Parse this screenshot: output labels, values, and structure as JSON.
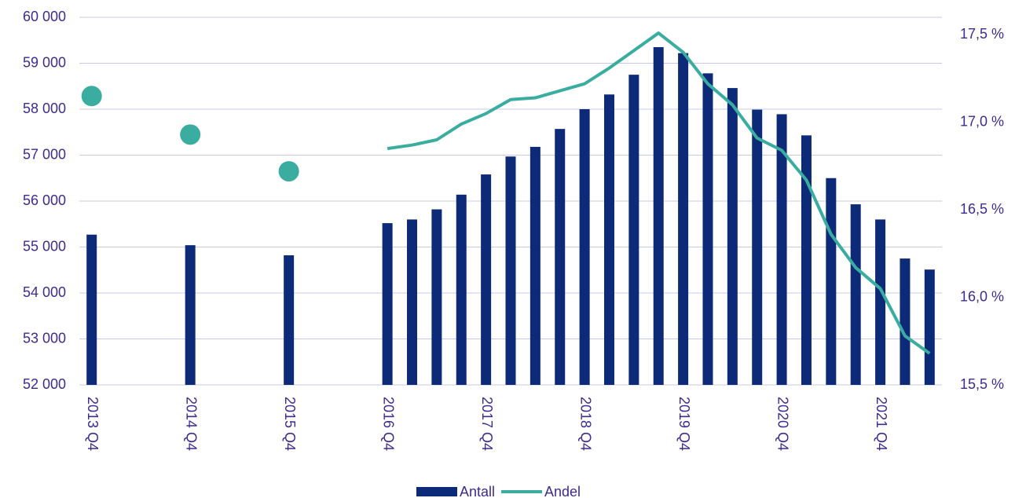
{
  "chart_data": {
    "type": "bar",
    "categories": [
      "2013 Q4",
      null,
      null,
      null,
      "2014 Q4",
      null,
      null,
      null,
      "2015 Q4",
      null,
      null,
      null,
      "2016 Q4",
      null,
      null,
      null,
      "2017 Q4",
      null,
      null,
      null,
      "2018 Q4",
      null,
      null,
      null,
      "2019 Q4",
      null,
      null,
      null,
      "2020 Q4",
      null,
      null,
      null,
      "2021 Q4",
      null,
      null
    ],
    "series": [
      {
        "name": "Antall",
        "color": "#0d2a78",
        "type": "bar",
        "values": [
          55270,
          null,
          null,
          null,
          55040,
          null,
          null,
          null,
          54820,
          null,
          null,
          null,
          55520,
          55600,
          55820,
          56140,
          56580,
          56970,
          57180,
          57570,
          58000,
          58320,
          58750,
          59350,
          59220,
          58780,
          58460,
          57990,
          57890,
          57430,
          56500,
          55930,
          55600,
          54750,
          54510
        ]
      },
      {
        "name": "Andel",
        "color": "#3aada0",
        "type": "line",
        "axis": "y2",
        "values": [
          17.15,
          null,
          null,
          null,
          16.93,
          null,
          null,
          null,
          16.72,
          null,
          null,
          null,
          16.85,
          16.87,
          16.9,
          16.99,
          17.05,
          17.13,
          17.14,
          17.18,
          17.22,
          17.31,
          17.41,
          17.51,
          17.4,
          17.22,
          17.1,
          16.91,
          16.84,
          16.67,
          16.36,
          16.17,
          16.05,
          15.78,
          15.68
        ]
      }
    ],
    "ylim": [
      52000,
      60000
    ],
    "yticks": [
      {
        "value": 52000,
        "label": "52 000"
      },
      {
        "value": 53000,
        "label": "53 000"
      },
      {
        "value": 54000,
        "label": "54 000"
      },
      {
        "value": 55000,
        "label": "55 000"
      },
      {
        "value": 56000,
        "label": "56 000"
      },
      {
        "value": 57000,
        "label": "57 000"
      },
      {
        "value": 58000,
        "label": "58 000"
      },
      {
        "value": 59000,
        "label": "59 000"
      },
      {
        "value": 60000,
        "label": "60 000"
      }
    ],
    "y2lim": [
      15.5,
      17.6
    ],
    "y2ticks": [
      {
        "value": 15.5,
        "label": "15,5 %"
      },
      {
        "value": 16.0,
        "label": "16,0 %"
      },
      {
        "value": 16.5,
        "label": "16,5 %"
      },
      {
        "value": 17.0,
        "label": "17,0 %"
      },
      {
        "value": 17.5,
        "label": "17,5 %"
      }
    ],
    "grid": true,
    "legend": "bottom"
  }
}
